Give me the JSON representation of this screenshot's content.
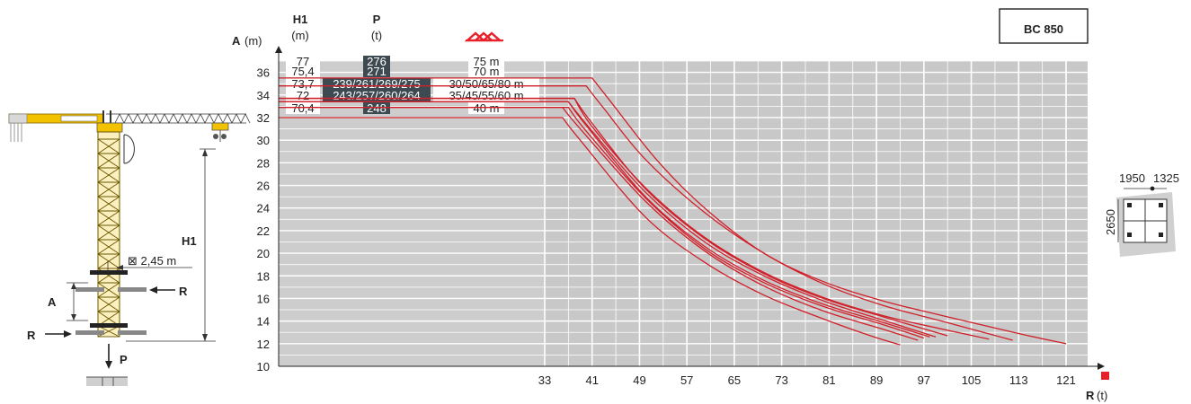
{
  "model_label": "BC 850",
  "columns": {
    "h1_title": "H1",
    "h1_unit": "(m)",
    "p_title": "P",
    "p_unit": "(t)"
  },
  "y_axis": {
    "label": "A",
    "unit": "(m)"
  },
  "x_axis": {
    "label": "R",
    "unit": "(t)"
  },
  "rows": [
    {
      "h1": "77",
      "p": "276",
      "jib": "75 m",
      "dark": false
    },
    {
      "h1": "75,4",
      "p": "271",
      "jib": "70 m",
      "dark": false
    },
    {
      "h1": "73,7",
      "p": "239/261/269/275",
      "jib": "30/50/65/80 m",
      "dark": true
    },
    {
      "h1": "72",
      "p": "243/257/260/264",
      "jib": "35/45/55/60 m",
      "dark": true
    },
    {
      "h1": "70,4",
      "p": "248",
      "jib": "40 m",
      "dark": false
    }
  ],
  "crane": {
    "mast_label": "⊠ 2,45 m",
    "h1_label": "H1",
    "a_label": "A",
    "r_label": "R",
    "p_label": "P"
  },
  "base": {
    "width_a": "1950",
    "width_b": "1325",
    "depth": "2650"
  },
  "colors": {
    "curve": "#d0202a",
    "panel": "#c8c8c8",
    "dark_cell": "#3e4a52",
    "mast": "#c9a000",
    "jib": "#f2c200"
  },
  "chart_data": {
    "type": "line",
    "x_ticks": [
      33,
      41,
      49,
      57,
      65,
      73,
      81,
      89,
      97,
      105,
      113,
      121
    ],
    "y_ticks": [
      10,
      12,
      14,
      16,
      18,
      20,
      22,
      24,
      26,
      28,
      30,
      32,
      34,
      36
    ],
    "ylim": [
      10,
      37
    ],
    "series": [
      {
        "values": [
          [
            0,
            35.5
          ],
          [
            41,
            35.5
          ],
          [
            44,
            33.5
          ],
          [
            52,
            28.2
          ],
          [
            60,
            24.0
          ],
          [
            70,
            20.0
          ],
          [
            80,
            17.5
          ],
          [
            90,
            15.8
          ],
          [
            100,
            14.5
          ],
          [
            113,
            12.9
          ],
          [
            121,
            12.0
          ]
        ]
      },
      {
        "values": [
          [
            0,
            34.8
          ],
          [
            40,
            34.8
          ],
          [
            43,
            32.8
          ],
          [
            50,
            28.3
          ],
          [
            60,
            23.6
          ],
          [
            70,
            20.0
          ],
          [
            80,
            17.3
          ],
          [
            90,
            15.4
          ],
          [
            100,
            14.0
          ],
          [
            112,
            12.3
          ]
        ]
      },
      {
        "values": [
          [
            0,
            33.7
          ],
          [
            38,
            33.7
          ],
          [
            41,
            31.5
          ],
          [
            50,
            25.7
          ],
          [
            60,
            21.3
          ],
          [
            70,
            18.2
          ],
          [
            80,
            16.0
          ],
          [
            90,
            14.4
          ],
          [
            101,
            12.7
          ]
        ]
      },
      {
        "values": [
          [
            0,
            33.4
          ],
          [
            37,
            33.4
          ],
          [
            41,
            30.8
          ],
          [
            50,
            25.4
          ],
          [
            60,
            21.0
          ],
          [
            70,
            18.0
          ],
          [
            80,
            15.8
          ],
          [
            90,
            14.1
          ],
          [
            99,
            12.6
          ]
        ]
      },
      {
        "values": [
          [
            0,
            33.7
          ],
          [
            38,
            33.7
          ],
          [
            41,
            31.2
          ],
          [
            50,
            25.8
          ],
          [
            60,
            21.4
          ],
          [
            70,
            18.3
          ],
          [
            80,
            16.1
          ],
          [
            90,
            14.5
          ],
          [
            100,
            13.3
          ],
          [
            108,
            12.4
          ]
        ]
      },
      {
        "values": [
          [
            0,
            33.4
          ],
          [
            37,
            33.4
          ],
          [
            40,
            31.3
          ],
          [
            50,
            25.0
          ],
          [
            60,
            20.6
          ],
          [
            70,
            17.6
          ],
          [
            80,
            15.5
          ],
          [
            90,
            13.9
          ],
          [
            98,
            12.6
          ]
        ]
      },
      {
        "values": [
          [
            0,
            32.9
          ],
          [
            37,
            32.9
          ],
          [
            40,
            30.8
          ],
          [
            50,
            24.9
          ],
          [
            60,
            20.4
          ],
          [
            70,
            17.4
          ],
          [
            80,
            15.3
          ],
          [
            90,
            13.7
          ],
          [
            97,
            12.5
          ]
        ]
      },
      {
        "values": [
          [
            0,
            32.9
          ],
          [
            36,
            32.9
          ],
          [
            39,
            31.0
          ],
          [
            50,
            24.6
          ],
          [
            60,
            20.2
          ],
          [
            70,
            17.1
          ],
          [
            80,
            14.9
          ],
          [
            90,
            13.3
          ],
          [
            96,
            12.3
          ]
        ]
      },
      {
        "values": [
          [
            0,
            32.0
          ],
          [
            36,
            32.0
          ],
          [
            39,
            30.0
          ],
          [
            50,
            23.2
          ],
          [
            60,
            19.2
          ],
          [
            70,
            16.3
          ],
          [
            80,
            14.2
          ],
          [
            88,
            12.7
          ],
          [
            93,
            11.9
          ]
        ]
      }
    ]
  }
}
